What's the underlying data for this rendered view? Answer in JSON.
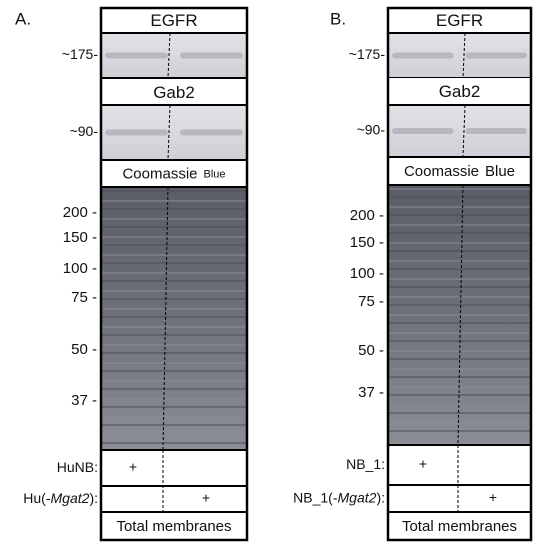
{
  "panels": [
    {
      "label": "A.",
      "bands": [
        {
          "title": "EGFR",
          "marker": "~175-"
        },
        {
          "title": "Gab2",
          "marker": "~90-"
        }
      ],
      "stain": {
        "main": "Coomassie",
        "second": "Blue"
      },
      "gel_markers": [
        "200 -",
        "150 -",
        "100 -",
        "75 -",
        "50 -",
        "37 -"
      ],
      "rows": [
        {
          "label": [
            "HuNB:"
          ],
          "mark": "+"
        },
        {
          "label": [
            "Hu(-",
            "Mgat2",
            "):"
          ],
          "mark": "+"
        }
      ],
      "footer": "Total membranes"
    },
    {
      "label": "B.",
      "bands": [
        {
          "title": "EGFR",
          "marker": "~175-"
        },
        {
          "title": "Gab2",
          "marker": "~90-"
        }
      ],
      "stain": {
        "main": "Coomassie",
        "second": "Blue"
      },
      "gel_markers": [
        "200 -",
        "150 -",
        "100 -",
        "75 -",
        "50 -",
        "37 -"
      ],
      "rows": [
        {
          "label": [
            "NB_1:"
          ],
          "mark": "+"
        },
        {
          "label": [
            "NB_1(-",
            "Mgat2",
            "):"
          ],
          "mark": "+"
        }
      ],
      "footer": "Total membranes"
    }
  ]
}
